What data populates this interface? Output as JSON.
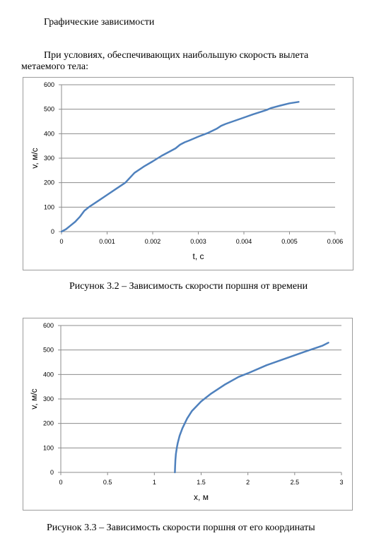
{
  "document": {
    "heading": "Графические зависимости",
    "intro": "При условиях, обеспечивающих наибольшую скорость вылета метаемого тела:",
    "caption_1": "Рисунок 3.2 – Зависимость скорости поршня от времени",
    "caption_2": "Рисунок 3.3 – Зависимость скорости поршня от его координаты"
  },
  "chart_data": [
    {
      "type": "line",
      "title": "",
      "xlabel": "t, с",
      "ylabel": "v, м/с",
      "xlim": [
        0,
        0.006
      ],
      "ylim": [
        0,
        600
      ],
      "x_ticks": [
        "0",
        "0.001",
        "0.002",
        "0.003",
        "0.004",
        "0.005",
        "0.006"
      ],
      "y_ticks": [
        "0",
        "100",
        "200",
        "300",
        "400",
        "500",
        "600"
      ],
      "grid": "horizontal",
      "legend": "none",
      "series": [
        {
          "color": "#4f81bd",
          "x": [
            0,
            0.0001,
            0.0002,
            0.0003,
            0.0004,
            0.0005,
            0.0006,
            0.0008,
            0.001,
            0.0012,
            0.0014,
            0.0016,
            0.0018,
            0.002,
            0.0022,
            0.0024,
            0.0025,
            0.0026,
            0.0027,
            0.0028,
            0.003,
            0.0032,
            0.0034,
            0.0035,
            0.0036,
            0.0038,
            0.004,
            0.0042,
            0.0044,
            0.0045,
            0.0046,
            0.0048,
            0.005,
            0.0052
          ],
          "y": [
            0,
            10,
            25,
            40,
            60,
            85,
            100,
            125,
            150,
            175,
            200,
            240,
            265,
            287,
            310,
            330,
            340,
            355,
            365,
            372,
            388,
            402,
            420,
            432,
            440,
            453,
            466,
            479,
            491,
            497,
            505,
            515,
            524,
            530
          ]
        }
      ]
    },
    {
      "type": "line",
      "title": "",
      "xlabel": "x, м",
      "ylabel": "v, м/с",
      "xlim": [
        0,
        3
      ],
      "ylim": [
        0,
        600
      ],
      "x_ticks": [
        "0",
        "0.5",
        "1",
        "1.5",
        "2",
        "2.5",
        "3"
      ],
      "y_ticks": [
        "0",
        "100",
        "200",
        "300",
        "400",
        "500",
        "600"
      ],
      "grid": "horizontal",
      "legend": "none",
      "series": [
        {
          "color": "#4f81bd",
          "x": [
            1.22,
            1.222,
            1.225,
            1.23,
            1.24,
            1.25,
            1.27,
            1.3,
            1.35,
            1.4,
            1.5,
            1.6,
            1.75,
            1.9,
            2.0,
            2.2,
            2.4,
            2.6,
            2.8,
            2.86
          ],
          "y": [
            0,
            25,
            50,
            75,
            100,
            120,
            150,
            180,
            220,
            250,
            290,
            320,
            358,
            390,
            405,
            438,
            465,
            492,
            518,
            530
          ]
        }
      ]
    }
  ]
}
